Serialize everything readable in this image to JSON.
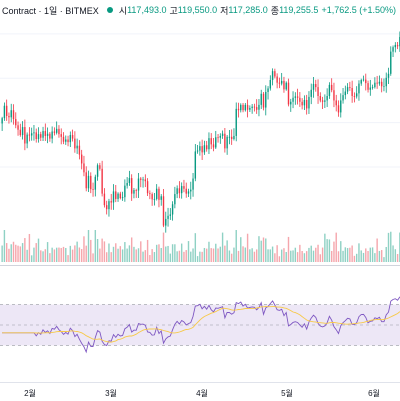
{
  "header": {
    "title": "Contract · 1일 · BITMEX",
    "open_label": "시",
    "open_value": "117,493.0",
    "high_label": "고",
    "high_value": "119,550.0",
    "low_label": "저",
    "low_value": "117,285.0",
    "close_label": "종",
    "close_value": "119,255.5",
    "change": "+1,762.5 (+1.50%)"
  },
  "x_axis": {
    "ticks": [
      "2월",
      "3월",
      "4월",
      "5월",
      "6월"
    ]
  },
  "colors": {
    "up": "#089981",
    "down": "#f23645",
    "volume_up": "#8fd1c4",
    "volume_down": "#f5a6ac",
    "rsi_line": "#7e57c2",
    "rsi_ma": "#f7c948",
    "rsi_band": "#ede7f6"
  },
  "chart_data": {
    "type": "candlestick",
    "panels": [
      "price",
      "volume",
      "rsi"
    ],
    "rsi_band": [
      30,
      70
    ],
    "closes": [
      101000,
      103800,
      101500,
      101200,
      102800,
      100800,
      99400,
      98400,
      97200,
      99000,
      95300,
      97300,
      97100,
      97600,
      97800,
      96300,
      97400,
      96600,
      98100,
      97000,
      97500,
      96400,
      98000,
      97700,
      98600,
      97400,
      96800,
      95700,
      96200,
      95600,
      97200,
      96400,
      94200,
      94800,
      92800,
      90800,
      88800,
      85200,
      88000,
      85000,
      84900,
      87800,
      90400,
      89600,
      84000,
      81400,
      80500,
      82300,
      82000,
      84500,
      82800,
      84000,
      83000,
      83200,
      85800,
      86400,
      87500,
      84000,
      84800,
      84700,
      87400,
      87100,
      87200,
      86800,
      84100,
      83900,
      82700,
      82800,
      85100,
      82600,
      83400,
      76800,
      78300,
      79000,
      79300,
      81600,
      83900,
      85200,
      84100,
      85700,
      85100,
      84000,
      84500,
      84900,
      87400,
      93500,
      93700,
      94700,
      93300,
      94900,
      94000,
      96500,
      95100,
      94400,
      96700,
      96600,
      97000,
      97500,
      94200,
      96800,
      96800,
      96300,
      97000,
      103100,
      102800,
      104000,
      102800,
      104000,
      102900,
      103300,
      103600,
      103500,
      102900,
      104000,
      106500,
      103400,
      106900,
      107700,
      109600,
      111600,
      110400,
      109000,
      108800,
      109400,
      107500,
      109000,
      104100,
      104700,
      105600,
      105900,
      105600,
      104700,
      103900,
      105100,
      103200,
      105800,
      107400,
      108700,
      108000,
      106000,
      105000,
      104700,
      105000,
      106000,
      108500,
      107300,
      105000,
      103900,
      102300,
      105000,
      106200,
      107000,
      108000,
      107800,
      106000,
      105900,
      106600,
      108800,
      109600,
      109700,
      108900,
      107400,
      107900,
      108000,
      109000,
      108800,
      109200,
      108200,
      108200,
      110100,
      111000,
      116000,
      117000,
      117500,
      117200,
      119300
    ]
  }
}
